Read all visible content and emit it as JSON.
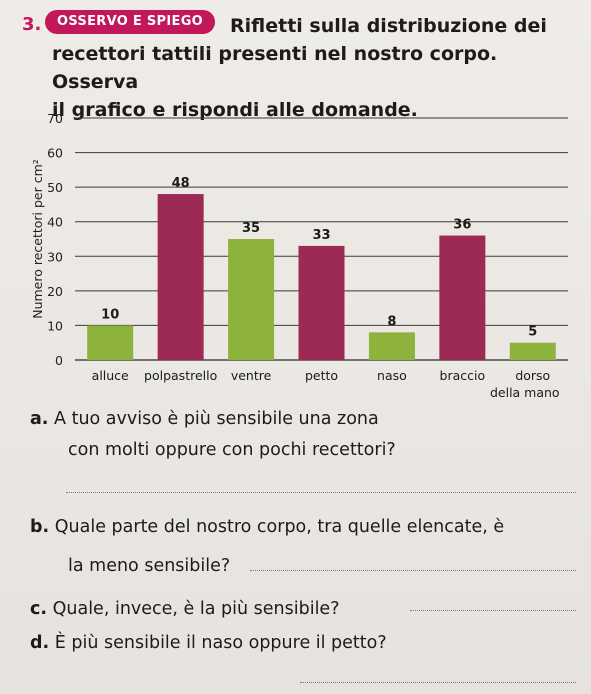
{
  "exercise": {
    "number": "3.",
    "badge": "OSSERVO E SPIEGO",
    "intro_line1": "Rifletti sulla distribuzione dei",
    "intro_line2": "recettori tattili presenti nel nostro corpo. Osserva",
    "intro_line3": "il grafico e rispondi alle domande."
  },
  "chart_data": {
    "type": "bar",
    "categories": [
      "alluce",
      "polpastrello",
      "ventre",
      "petto",
      "naso",
      "braccio",
      "dorso della mano"
    ],
    "category_labels": [
      "alluce",
      "polpastrello",
      "ventre",
      "petto",
      "naso",
      "braccio",
      "dorso"
    ],
    "category_sublabels": [
      "",
      "",
      "",
      "",
      "",
      "",
      "della mano"
    ],
    "values": [
      10,
      48,
      35,
      33,
      8,
      36,
      5
    ],
    "bar_colors": [
      "#8db33d",
      "#9c2a55",
      "#8db33d",
      "#9c2a55",
      "#8db33d",
      "#9c2a55",
      "#8db33d"
    ],
    "ylabel": "Numero recettori per cm²",
    "ylim": [
      0,
      70
    ],
    "yticks": [
      0,
      10,
      20,
      30,
      40,
      50,
      60,
      70
    ],
    "grid": true
  },
  "questions": {
    "a_letter": "a.",
    "a_line1": "A tuo avviso è più sensibile una zona",
    "a_line2": "con molti oppure con pochi recettori?",
    "b_letter": "b.",
    "b_line1": "Quale parte del nostro corpo, tra quelle elencate, è",
    "b_line2": "la meno sensibile?",
    "c_letter": "c.",
    "c_text": "Quale, invece, è la più sensibile?",
    "d_letter": "d.",
    "d_text": "È più sensibile il naso oppure il petto?"
  }
}
